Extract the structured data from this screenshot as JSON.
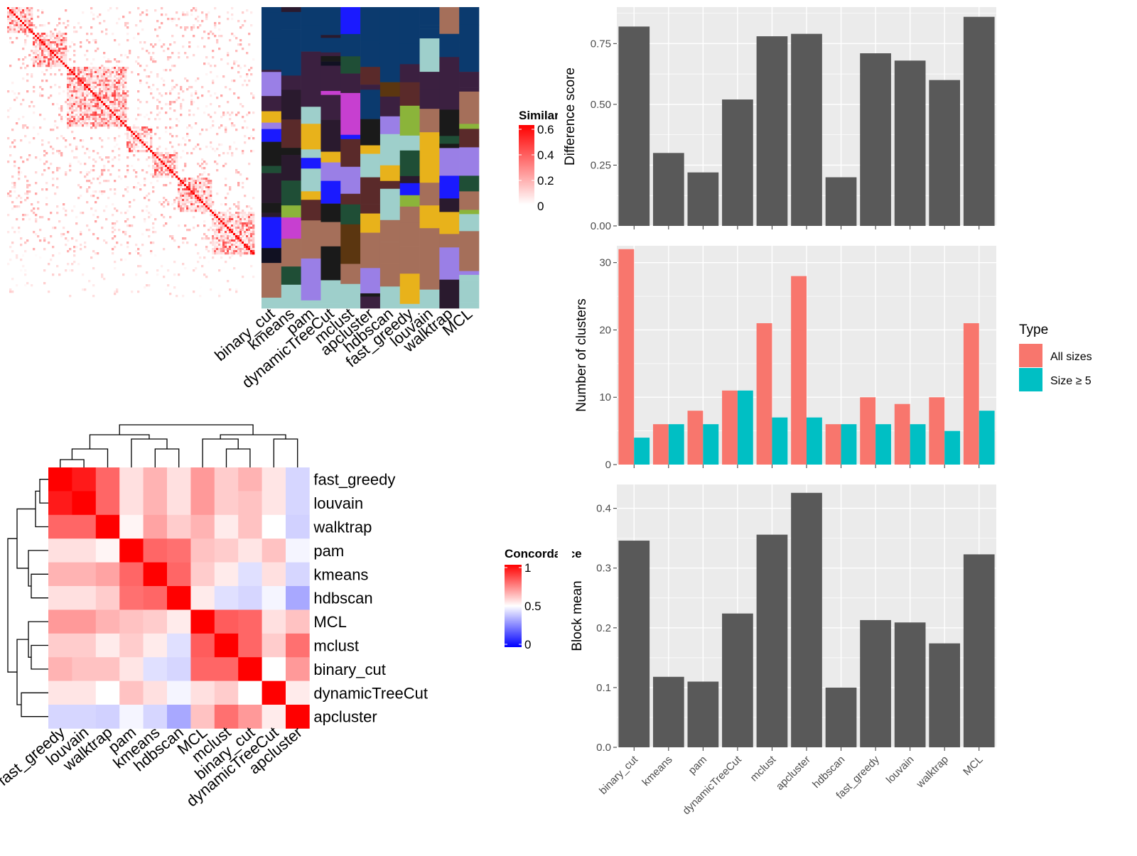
{
  "methods": [
    "binary_cut",
    "kmeans",
    "pam",
    "dynamicTreeCut",
    "mclust",
    "apcluster",
    "hdbscan",
    "fast_greedy",
    "louvain",
    "walktrap",
    "MCL"
  ],
  "similarity_legend": {
    "title": "Similarity",
    "ticks": [
      "0.6",
      "0.4",
      "0.2",
      "0"
    ]
  },
  "concordance_legend": {
    "title": "Concordance",
    "ticks": [
      "1",
      "0.5",
      "0"
    ]
  },
  "chart_data": [
    {
      "type": "heatmap",
      "name": "similarity_matrix_with_partition_annotation",
      "legend_title": "Similarity",
      "range": [
        0,
        0.6
      ],
      "annotation_columns": [
        "binary_cut",
        "kmeans",
        "pam",
        "dynamicTreeCut",
        "mclust",
        "apcluster",
        "hdbscan",
        "fast_greedy",
        "louvain",
        "walktrap",
        "MCL"
      ]
    },
    {
      "type": "heatmap",
      "name": "concordance_matrix",
      "legend_title": "Concordance",
      "range": [
        0,
        1
      ],
      "row_labels": [
        "fast_greedy",
        "louvain",
        "walktrap",
        "pam",
        "kmeans",
        "hdbscan",
        "MCL",
        "mclust",
        "binary_cut",
        "dynamicTreeCut",
        "apcluster"
      ],
      "col_labels": [
        "fast_greedy",
        "louvain",
        "walktrap",
        "pam",
        "kmeans",
        "hdbscan",
        "MCL",
        "mclust",
        "binary_cut",
        "dynamicTreeCut",
        "apcluster"
      ],
      "values": [
        [
          1.0,
          0.95,
          0.8,
          0.56,
          0.65,
          0.56,
          0.7,
          0.6,
          0.65,
          0.55,
          0.42
        ],
        [
          0.95,
          1.0,
          0.8,
          0.56,
          0.65,
          0.56,
          0.7,
          0.6,
          0.62,
          0.55,
          0.42
        ],
        [
          0.8,
          0.8,
          1.0,
          0.52,
          0.68,
          0.6,
          0.65,
          0.54,
          0.62,
          0.5,
          0.41
        ],
        [
          0.56,
          0.56,
          0.52,
          1.0,
          0.8,
          0.78,
          0.62,
          0.6,
          0.55,
          0.62,
          0.48
        ],
        [
          0.65,
          0.65,
          0.68,
          0.8,
          1.0,
          0.8,
          0.6,
          0.54,
          0.44,
          0.56,
          0.42
        ],
        [
          0.56,
          0.56,
          0.6,
          0.78,
          0.8,
          1.0,
          0.54,
          0.44,
          0.42,
          0.48,
          0.33
        ],
        [
          0.7,
          0.7,
          0.65,
          0.62,
          0.6,
          0.54,
          1.0,
          0.82,
          0.8,
          0.56,
          0.62
        ],
        [
          0.6,
          0.6,
          0.54,
          0.6,
          0.54,
          0.44,
          0.82,
          1.0,
          0.8,
          0.6,
          0.78
        ],
        [
          0.65,
          0.62,
          0.62,
          0.55,
          0.44,
          0.42,
          0.8,
          0.8,
          1.0,
          0.5,
          0.7
        ],
        [
          0.55,
          0.55,
          0.5,
          0.62,
          0.56,
          0.48,
          0.56,
          0.6,
          0.5,
          1.0,
          0.54
        ],
        [
          0.42,
          0.42,
          0.41,
          0.48,
          0.42,
          0.33,
          0.62,
          0.78,
          0.7,
          0.54,
          1.0
        ]
      ]
    },
    {
      "type": "bar",
      "name": "difference_score",
      "categories": [
        "binary_cut",
        "kmeans",
        "pam",
        "dynamicTreeCut",
        "mclust",
        "apcluster",
        "hdbscan",
        "fast_greedy",
        "louvain",
        "walktrap",
        "MCL"
      ],
      "values": [
        0.82,
        0.3,
        0.22,
        0.52,
        0.78,
        0.79,
        0.2,
        0.71,
        0.68,
        0.6,
        0.86
      ],
      "ylabel": "Difference score",
      "yticks": [
        "0.00",
        "0.25",
        "0.50",
        "0.75"
      ],
      "ylim": [
        0,
        0.9
      ],
      "grid": true
    },
    {
      "type": "bar",
      "name": "number_of_clusters",
      "categories": [
        "binary_cut",
        "kmeans",
        "pam",
        "dynamicTreeCut",
        "mclust",
        "apcluster",
        "hdbscan",
        "fast_greedy",
        "louvain",
        "walktrap",
        "MCL"
      ],
      "series": [
        {
          "name": "All sizes",
          "color": "#F8766D",
          "values": [
            32,
            6,
            8,
            11,
            21,
            28,
            6,
            10,
            9,
            10,
            21
          ]
        },
        {
          "name": "Size ≥ 5",
          "color": "#00BFC4",
          "values": [
            4,
            6,
            6,
            11,
            7,
            7,
            6,
            6,
            6,
            5,
            8
          ]
        }
      ],
      "ylabel": "Number of clusters",
      "yticks": [
        "0",
        "10",
        "20",
        "30"
      ],
      "ylim": [
        0,
        32.5
      ],
      "legend_title": "Type",
      "legend_position": "right",
      "grid": true
    },
    {
      "type": "bar",
      "name": "block_mean",
      "categories": [
        "binary_cut",
        "kmeans",
        "pam",
        "dynamicTreeCut",
        "mclust",
        "apcluster",
        "hdbscan",
        "fast_greedy",
        "louvain",
        "walktrap",
        "MCL"
      ],
      "values": [
        0.346,
        0.118,
        0.11,
        0.224,
        0.356,
        0.426,
        0.1,
        0.213,
        0.209,
        0.174,
        0.323
      ],
      "ylabel": "Block mean",
      "yticks": [
        "0.0",
        "0.1",
        "0.2",
        "0.3",
        "0.4"
      ],
      "ylim": [
        0,
        0.44
      ],
      "grid": true
    }
  ],
  "colors": {
    "bar_fill": "#595959",
    "panel_bg": "#EBEBEB",
    "all_sizes": "#F8766D",
    "size_ge_5": "#00BFC4"
  }
}
